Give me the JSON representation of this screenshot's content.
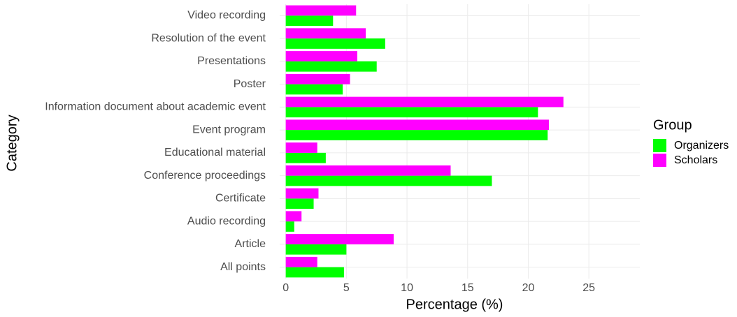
{
  "chart_data": {
    "type": "hbar",
    "x_label": "Percentage (%)",
    "y_label": "Category",
    "categories": [
      "Video recording",
      "Resolution of the event",
      "Presentations",
      "Poster",
      "Information document about academic event",
      "Event program",
      "Educational material",
      "Conference proceedings",
      "Certificate",
      "Audio recording",
      "Article",
      "All points"
    ],
    "series": [
      {
        "name": "Organizers",
        "color": "#00ff00",
        "values": [
          3.9,
          8.2,
          7.5,
          4.7,
          20.8,
          21.6,
          3.3,
          17.0,
          2.3,
          0.7,
          5.0,
          4.8
        ]
      },
      {
        "name": "Scholars",
        "color": "#ff00ff",
        "values": [
          5.8,
          6.6,
          5.9,
          5.3,
          22.9,
          21.7,
          2.6,
          13.6,
          2.7,
          1.3,
          8.9,
          2.6
        ]
      }
    ],
    "xlim": [
      -0.5,
      29.2
    ],
    "xticks": [
      0,
      5,
      10,
      15,
      20,
      25
    ],
    "grid": true,
    "legend_title": "Group",
    "legend": "right"
  }
}
